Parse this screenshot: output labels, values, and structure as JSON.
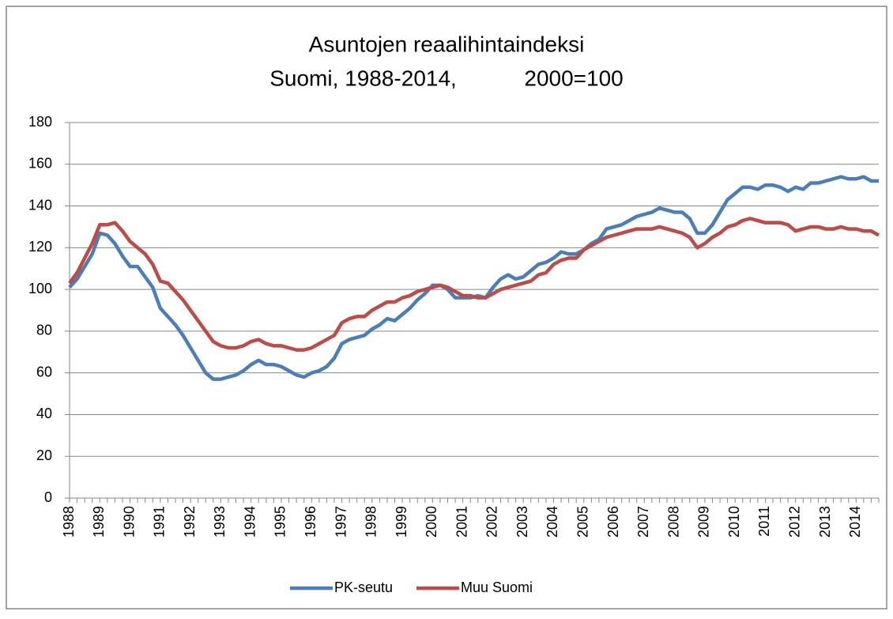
{
  "chart_data": {
    "type": "line",
    "title": "Asuntojen reaalihintaindeksi",
    "subtitle": "Suomi, 1988-2014,           2000=100",
    "categories": [
      "1988",
      null,
      null,
      null,
      "1989",
      null,
      null,
      null,
      "1990",
      null,
      null,
      null,
      "1991",
      null,
      null,
      null,
      "1992",
      null,
      null,
      null,
      "1993",
      null,
      null,
      null,
      "1994",
      null,
      null,
      null,
      "1995",
      null,
      null,
      null,
      "1996",
      null,
      null,
      null,
      "1997",
      null,
      null,
      null,
      "1998",
      null,
      null,
      null,
      "1999",
      null,
      null,
      null,
      "2000",
      null,
      null,
      null,
      "2001",
      null,
      null,
      null,
      "2002",
      null,
      null,
      null,
      "2003",
      null,
      null,
      null,
      "2004",
      null,
      null,
      null,
      "2005",
      null,
      null,
      null,
      "2006",
      null,
      null,
      null,
      "2007",
      null,
      null,
      null,
      "2008",
      null,
      null,
      null,
      "2009",
      null,
      null,
      null,
      "2010",
      null,
      null,
      null,
      "2011",
      null,
      null,
      null,
      "2012",
      null,
      null,
      null,
      "2013",
      null,
      null,
      null,
      "2014",
      null,
      null,
      null
    ],
    "series": [
      {
        "name": "PK-seutu",
        "color": "#4a7ebb",
        "values": [
          101,
          105,
          111,
          117,
          127,
          126,
          122,
          116,
          111,
          111,
          106,
          101,
          91,
          87,
          83,
          78,
          72,
          66,
          60,
          57,
          57,
          58,
          59,
          61,
          64,
          66,
          64,
          64,
          63,
          61,
          59,
          58,
          60,
          61,
          63,
          67,
          74,
          76,
          77,
          78,
          81,
          83,
          86,
          85,
          88,
          91,
          95,
          98,
          102,
          102,
          100,
          96,
          96,
          96,
          97,
          96,
          101,
          105,
          107,
          105,
          106,
          109,
          112,
          113,
          115,
          118,
          117,
          117,
          119,
          122,
          124,
          129,
          130,
          131,
          133,
          135,
          136,
          137,
          139,
          138,
          137,
          137,
          134,
          127,
          127,
          131,
          137,
          143,
          146,
          149,
          149,
          148,
          150,
          150,
          149,
          147,
          149,
          148,
          151,
          151,
          152,
          153,
          154,
          153,
          153,
          154,
          152,
          152
        ]
      },
      {
        "name": "Muu Suomi",
        "color": "#be4b48",
        "values": [
          103,
          108,
          115,
          122,
          131,
          131,
          132,
          128,
          123,
          120,
          117,
          112,
          104,
          103,
          99,
          95,
          90,
          85,
          80,
          75,
          73,
          72,
          72,
          73,
          75,
          76,
          74,
          73,
          73,
          72,
          71,
          71,
          72,
          74,
          76,
          78,
          84,
          86,
          87,
          87,
          90,
          92,
          94,
          94,
          96,
          97,
          99,
          100,
          101,
          102,
          101,
          99,
          97,
          97,
          96,
          96,
          98,
          100,
          101,
          102,
          103,
          104,
          107,
          108,
          112,
          114,
          115,
          115,
          119,
          121,
          123,
          125,
          126,
          127,
          128,
          129,
          129,
          129,
          130,
          129,
          128,
          127,
          125,
          120,
          122,
          125,
          127,
          130,
          131,
          133,
          134,
          133,
          132,
          132,
          132,
          131,
          128,
          129,
          130,
          130,
          129,
          129,
          130,
          129,
          129,
          128,
          128,
          126
        ]
      }
    ],
    "ylim": [
      0,
      180
    ],
    "yticks": [
      0,
      20,
      40,
      60,
      80,
      100,
      120,
      140,
      160,
      180
    ],
    "grid": true,
    "legend": "bottom"
  }
}
